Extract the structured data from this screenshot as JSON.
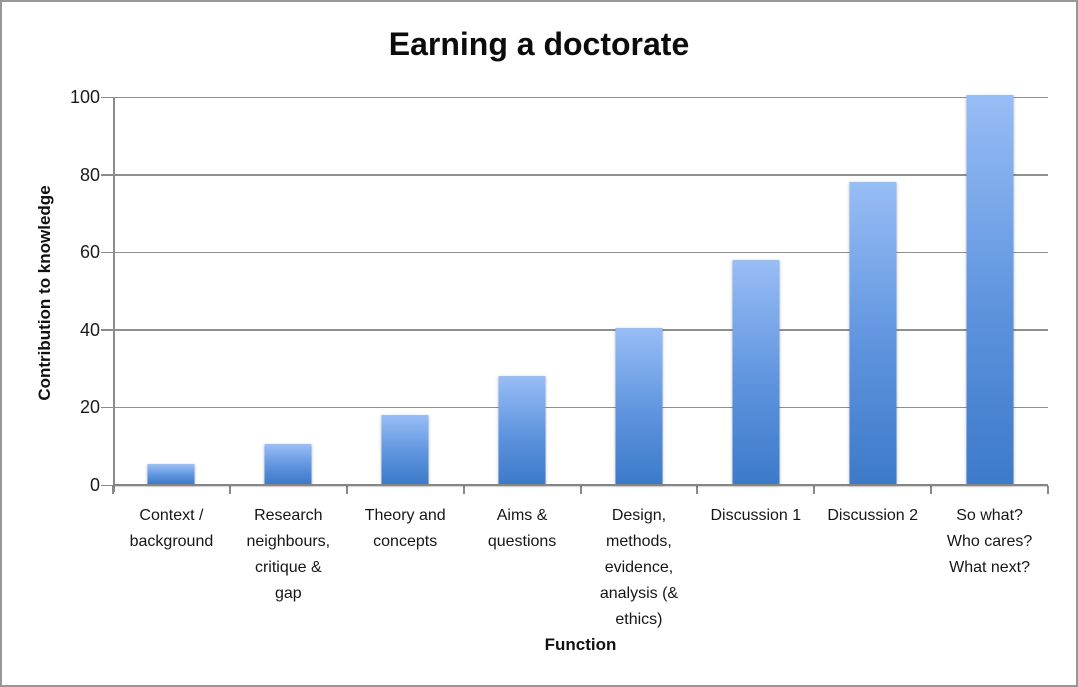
{
  "figure": {
    "background_color": "#ffffff",
    "border_color": "#979797"
  },
  "chart_data": {
    "type": "bar",
    "title": "Earning a doctorate",
    "xlabel": "Function",
    "ylabel": "Contribution to knowledge",
    "ylim": [
      0,
      100
    ],
    "yticks": [
      0,
      20,
      40,
      60,
      80,
      100
    ],
    "grid": true,
    "legend": false,
    "categories": [
      "Context /\nbackground",
      "Research\nneighbours,\ncritique &\ngap",
      "Theory and\nconcepts",
      "Aims &\nquestions",
      "Design,\nmethods,\nevidence,\nanalysis (&\nethics)",
      "Discussion 1",
      "Discussion 2",
      "So what?\nWho cares?\nWhat next?"
    ],
    "values": [
      5,
      10,
      17.5,
      27.5,
      40,
      57.5,
      77.5,
      100
    ],
    "colors": {
      "bar_gradient_top": "#97BDF5",
      "bar_gradient_mid": "#5E93DE",
      "bar_gradient_bottom": "#3C7AC9",
      "gridline": "#8f8f8f",
      "axis": "#8a8a8a",
      "text": "#161616"
    }
  }
}
